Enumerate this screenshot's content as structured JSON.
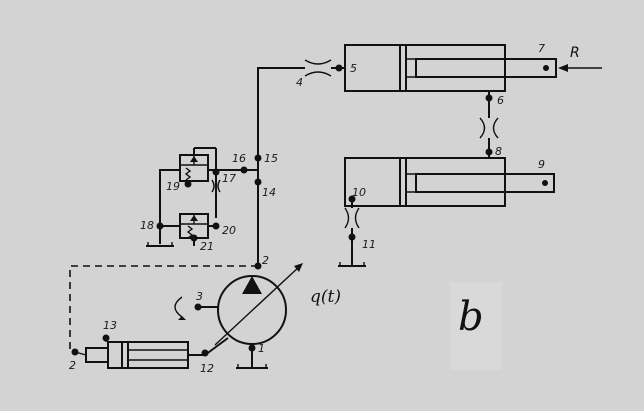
{
  "figure_letter": "b",
  "flow_label": "q(t)",
  "load_label": "R",
  "nodes": {
    "n1": "1",
    "n2a": "2",
    "n2b": "2",
    "n3": "3",
    "n4": "4",
    "n5": "5",
    "n6": "6",
    "n7": "7",
    "n8": "8",
    "n9": "9",
    "n10": "10",
    "n11": "11",
    "n12": "12",
    "n13": "13",
    "n14": "14",
    "n15": "15",
    "n16": "16",
    "n17": "17",
    "n18": "18",
    "n19": "19",
    "n20": "20",
    "n21": "21"
  }
}
